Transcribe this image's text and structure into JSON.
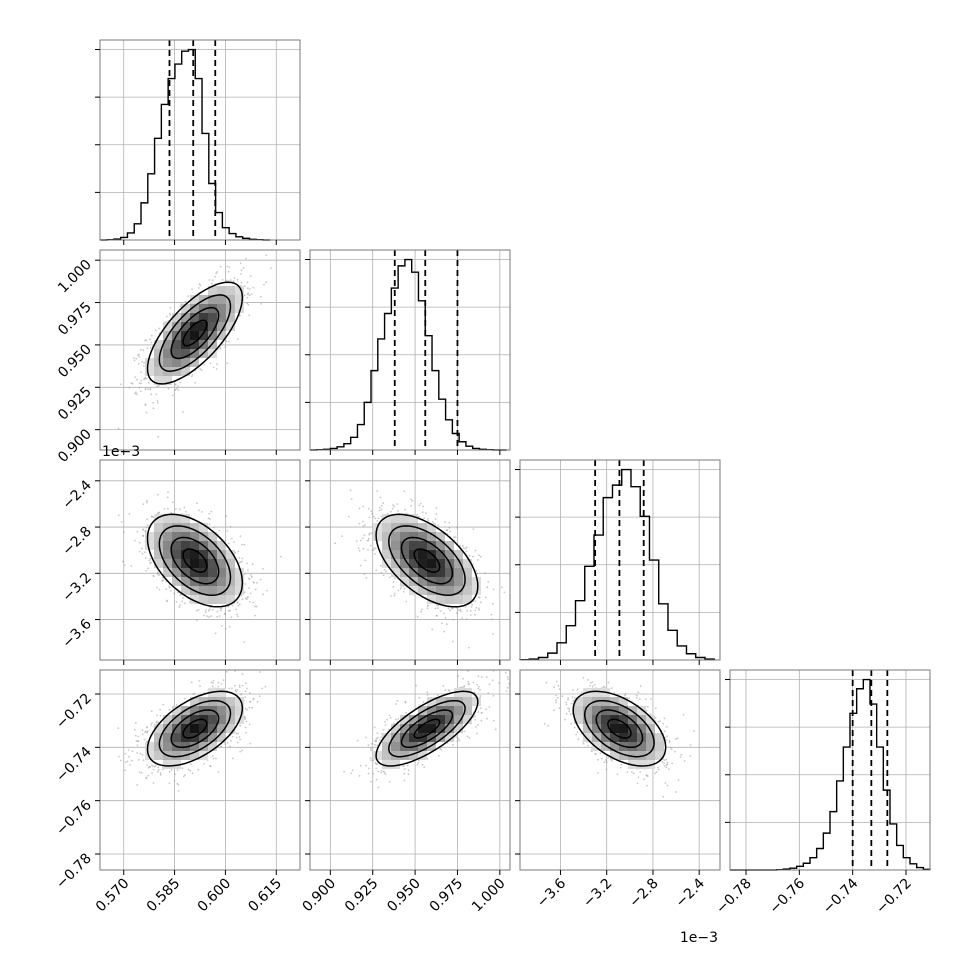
{
  "chart_data": {
    "type": "corner",
    "grid": true,
    "variables": [
      {
        "range": [
          0.563,
          0.622
        ],
        "ticks": [
          0.57,
          0.585,
          0.6,
          0.615
        ],
        "tick_labels": [
          "0.570",
          "0.585",
          "0.600",
          "0.615"
        ],
        "offset_label": ""
      },
      {
        "range": [
          0.888,
          1.006
        ],
        "ticks": [
          0.9,
          0.925,
          0.95,
          0.975,
          1.0
        ],
        "tick_labels": [
          "0.900",
          "0.925",
          "0.950",
          "0.975",
          "1.000"
        ],
        "offset_label": ""
      },
      {
        "range": [
          -3.95,
          -2.22
        ],
        "ticks": [
          -3.6,
          -3.2,
          -2.8,
          -2.4
        ],
        "tick_labels": [
          "−3.6",
          "−3.2",
          "−2.8",
          "−2.4"
        ],
        "offset_label": "1e−3"
      },
      {
        "range": [
          -0.786,
          -0.711
        ],
        "ticks": [
          -0.78,
          -0.76,
          -0.74,
          -0.72
        ],
        "tick_labels": [
          "−0.78",
          "−0.76",
          "−0.74",
          "−0.72"
        ],
        "offset_label": ""
      }
    ],
    "marginals": [
      {
        "quantiles": [
          0.5835,
          0.5905,
          0.597
        ],
        "bins": [
          0.5631,
          0.5651,
          0.5671,
          0.5691,
          0.5711,
          0.5731,
          0.5751,
          0.5771,
          0.5791,
          0.5811,
          0.5831,
          0.5851,
          0.5871,
          0.5891,
          0.5911,
          0.5931,
          0.5951,
          0.5971,
          0.5991,
          0.6011,
          0.6031,
          0.6051,
          0.6071,
          0.6091,
          0.6111,
          0.6131
        ],
        "counts": [
          0,
          1,
          3,
          8,
          22,
          50,
          115,
          205,
          315,
          420,
          500,
          545,
          585,
          590,
          500,
          330,
          175,
          85,
          38,
          20,
          10,
          5,
          2,
          1,
          0
        ]
      },
      {
        "quantiles": [
          0.938,
          0.956,
          0.975
        ],
        "bins": [
          0.888,
          0.892,
          0.896,
          0.9,
          0.904,
          0.908,
          0.912,
          0.916,
          0.92,
          0.924,
          0.928,
          0.932,
          0.936,
          0.94,
          0.944,
          0.948,
          0.952,
          0.956,
          0.96,
          0.964,
          0.968,
          0.972,
          0.976,
          0.98,
          0.984,
          0.988,
          0.992,
          0.996,
          1.0,
          1.004
        ],
        "counts": [
          0,
          1,
          2,
          5,
          10,
          20,
          40,
          80,
          150,
          250,
          350,
          430,
          510,
          580,
          600,
          560,
          470,
          360,
          250,
          160,
          95,
          52,
          26,
          12,
          5,
          2,
          1,
          0,
          0
        ]
      },
      {
        "quantiles": [
          -3.3,
          -3.09,
          -2.88
        ],
        "bins": [
          -3.95,
          -3.87,
          -3.79,
          -3.71,
          -3.63,
          -3.55,
          -3.47,
          -3.39,
          -3.31,
          -3.23,
          -3.15,
          -3.07,
          -2.99,
          -2.91,
          -2.83,
          -2.75,
          -2.67,
          -2.59,
          -2.51,
          -2.43,
          -2.35,
          -2.27
        ],
        "counts": [
          1,
          3,
          8,
          22,
          55,
          110,
          190,
          300,
          400,
          520,
          560,
          610,
          555,
          460,
          320,
          180,
          95,
          45,
          20,
          8,
          3
        ]
      },
      {
        "quantiles": [
          -0.74,
          -0.733,
          -0.727
        ],
        "bins": [
          -0.786,
          -0.7835,
          -0.781,
          -0.7785,
          -0.776,
          -0.7735,
          -0.771,
          -0.7685,
          -0.766,
          -0.7635,
          -0.761,
          -0.7585,
          -0.756,
          -0.7535,
          -0.751,
          -0.7485,
          -0.746,
          -0.7435,
          -0.741,
          -0.7385,
          -0.736,
          -0.7335,
          -0.731,
          -0.7285,
          -0.726,
          -0.7235,
          -0.721,
          -0.7185,
          -0.716,
          -0.7135,
          -0.711
        ],
        "counts": [
          0,
          0,
          0,
          0,
          0,
          0,
          0,
          1,
          3,
          6,
          12,
          22,
          40,
          70,
          120,
          190,
          290,
          400,
          510,
          590,
          620,
          540,
          400,
          260,
          150,
          80,
          40,
          20,
          8,
          2
        ]
      }
    ],
    "pairs": [
      {
        "row": 1,
        "col": 0,
        "mean": [
          0.591,
          0.957
        ],
        "sd": [
          0.007,
          0.015
        ],
        "corr": 0.7
      },
      {
        "row": 2,
        "col": 0,
        "mean": [
          0.591,
          -3.09
        ],
        "sd": [
          0.007,
          0.2
        ],
        "corr": -0.48
      },
      {
        "row": 2,
        "col": 1,
        "mean": [
          0.957,
          -3.09
        ],
        "sd": [
          0.015,
          0.2
        ],
        "corr": -0.55
      },
      {
        "row": 3,
        "col": 0,
        "mean": [
          0.591,
          -0.733
        ],
        "sd": [
          0.007,
          0.007
        ],
        "corr": 0.55
      },
      {
        "row": 3,
        "col": 1,
        "mean": [
          0.957,
          -0.733
        ],
        "sd": [
          0.015,
          0.007
        ],
        "corr": 0.72
      },
      {
        "row": 3,
        "col": 2,
        "mean": [
          -3.09,
          -0.733
        ],
        "sd": [
          0.2,
          0.007
        ],
        "corr": -0.5
      }
    ],
    "contour_levels_sigma": [
      0.5,
      1.0,
      1.5,
      2.0
    ],
    "colors": {
      "line": "#000000",
      "points": "#9a9a9a",
      "grid": "#b0b0b0",
      "frame": "#7a7a7a"
    }
  }
}
